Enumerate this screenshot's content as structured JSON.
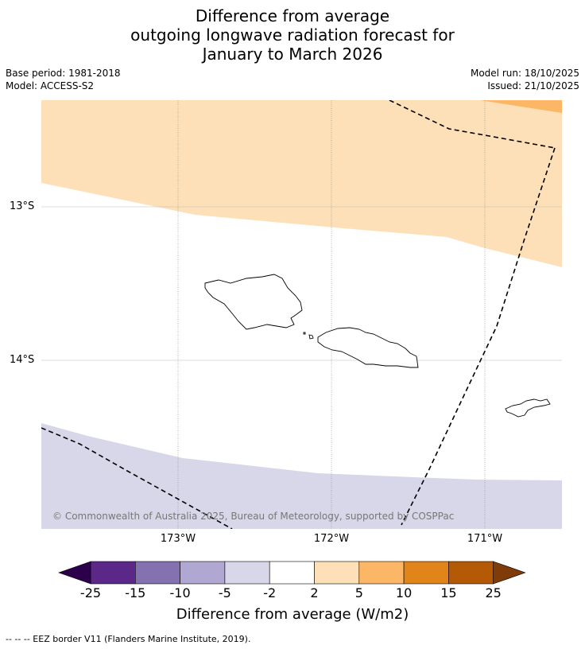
{
  "title": {
    "line1": "Difference from average",
    "line2": "outgoing longwave radiation forecast for",
    "line3": "January to March 2026"
  },
  "meta": {
    "base_period": "Base period: 1981-2018",
    "model": "Model: ACCESS-S2",
    "model_run": "Model run: 18/10/2025",
    "issued": "Issued: 21/10/2025"
  },
  "map": {
    "copyright": "© Commonwealth of Australia 2025, Bureau of Meteorology, supported by COSPPac",
    "lat_labels": [
      "13°S",
      "14°S"
    ],
    "lon_labels": [
      "173°W",
      "172°W",
      "171°W"
    ]
  },
  "colorbar": {
    "title": "Difference from average (W/m2)",
    "tick_labels": [
      "-25",
      "-15",
      "-10",
      "-5",
      "-2",
      "2",
      "5",
      "10",
      "15",
      "25"
    ],
    "colors": [
      "#5b2789",
      "#8472b0",
      "#b0a7d2",
      "#d7d7e9",
      "#ffffff",
      "#fde0b7",
      "#fbb765",
      "#e1841a",
      "#b45905"
    ],
    "extend_low_color": "#2d004b",
    "extend_high_color": "#7f3b08"
  },
  "colors": {
    "positive_light": "#fde0b7",
    "positive_medium": "#fbb765",
    "negative_light": "#d7d7e9"
  },
  "footnote": "--  --  -- EEZ border V11 (Flanders Marine Institute, 2019)."
}
